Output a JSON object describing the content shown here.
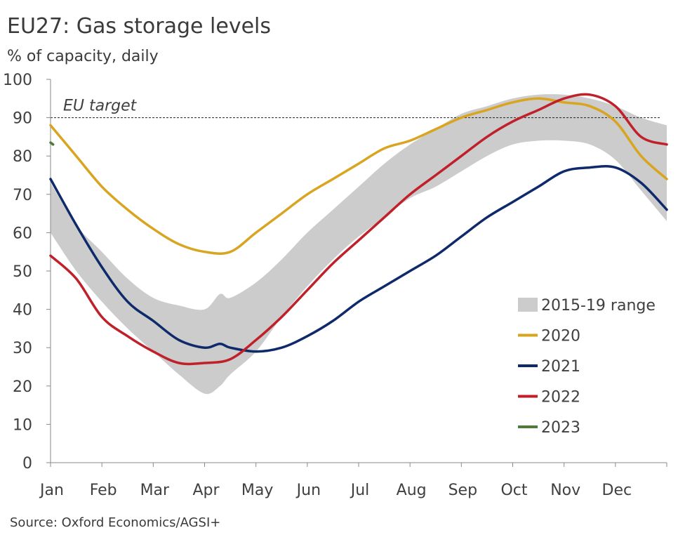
{
  "header": {
    "title": "EU27: Gas storage levels",
    "subtitle": "% of capacity, daily"
  },
  "footer": {
    "source": "Source: Oxford Economics/AGSI+"
  },
  "chart_data": {
    "type": "line",
    "x_unit": "month",
    "x_ticks": [
      "Jan",
      "Feb",
      "Mar",
      "Apr",
      "May",
      "Jun",
      "Jul",
      "Aug",
      "Sep",
      "Oct",
      "Nov",
      "Dec"
    ],
    "y_ticks": [
      0,
      10,
      20,
      30,
      40,
      50,
      60,
      70,
      80,
      90,
      100
    ],
    "ylim": [
      0,
      100
    ],
    "xlim": [
      0,
      12
    ],
    "grid": false,
    "legend_position": "bottom-right",
    "reference_line": {
      "label": "EU target",
      "value": 90
    },
    "range_band": {
      "name": "2015-19 range",
      "color": "#cccccc",
      "x": [
        0.0,
        0.5,
        1.0,
        1.5,
        2.0,
        2.5,
        3.0,
        3.3,
        3.5,
        4.0,
        4.5,
        5.0,
        5.5,
        6.0,
        6.5,
        7.0,
        7.5,
        8.0,
        8.5,
        9.0,
        9.5,
        10.0,
        10.5,
        11.0,
        11.5,
        12.0
      ],
      "upper": [
        73,
        62,
        55,
        48,
        43,
        41,
        40,
        44,
        43,
        47,
        53,
        60,
        66,
        72,
        78,
        83,
        87,
        91,
        93,
        95,
        96,
        96,
        95,
        93,
        90,
        88
      ],
      "lower": [
        60,
        50,
        42,
        35,
        29,
        23,
        18,
        20,
        23,
        29,
        38,
        46,
        53,
        59,
        64,
        69,
        72,
        76,
        80,
        83,
        84,
        84,
        83,
        79,
        71,
        63
      ]
    },
    "series": [
      {
        "name": "2020",
        "color": "#d9a521",
        "x": [
          0.0,
          0.5,
          1.0,
          1.5,
          2.0,
          2.5,
          3.0,
          3.5,
          4.0,
          4.5,
          5.0,
          5.5,
          6.0,
          6.5,
          7.0,
          7.5,
          8.0,
          8.5,
          9.0,
          9.5,
          10.0,
          10.5,
          11.0,
          11.5,
          12.0
        ],
        "values": [
          88,
          80,
          72,
          66,
          61,
          57,
          55,
          55,
          60,
          65,
          70,
          74,
          78,
          82,
          84,
          87,
          90,
          92,
          94,
          95,
          94,
          93,
          89,
          80,
          74
        ]
      },
      {
        "name": "2021",
        "color": "#0f2a6b",
        "x": [
          0.0,
          0.5,
          1.0,
          1.5,
          2.0,
          2.5,
          3.0,
          3.3,
          3.5,
          4.0,
          4.5,
          5.0,
          5.5,
          6.0,
          6.5,
          7.0,
          7.5,
          8.0,
          8.5,
          9.0,
          9.5,
          10.0,
          10.5,
          11.0,
          11.5,
          12.0
        ],
        "values": [
          74,
          62,
          51,
          42,
          37,
          32,
          30,
          31,
          30,
          29,
          30,
          33,
          37,
          42,
          46,
          50,
          54,
          59,
          64,
          68,
          72,
          76,
          77,
          77,
          73,
          66
        ]
      },
      {
        "name": "2022",
        "color": "#c0202a",
        "x": [
          0.0,
          0.5,
          1.0,
          1.5,
          2.0,
          2.5,
          3.0,
          3.5,
          4.0,
          4.5,
          5.0,
          5.5,
          6.0,
          6.5,
          7.0,
          7.5,
          8.0,
          8.5,
          9.0,
          9.5,
          10.0,
          10.5,
          11.0,
          11.5,
          12.0
        ],
        "values": [
          54,
          48,
          38,
          33,
          29,
          26,
          26,
          27,
          32,
          38,
          45,
          52,
          58,
          64,
          70,
          75,
          80,
          85,
          89,
          92,
          95,
          96,
          93,
          85,
          83
        ]
      },
      {
        "name": "2023",
        "color": "#4f7a3c",
        "x": [
          0.0,
          0.05
        ],
        "values": [
          83.5,
          83.0
        ]
      }
    ]
  }
}
